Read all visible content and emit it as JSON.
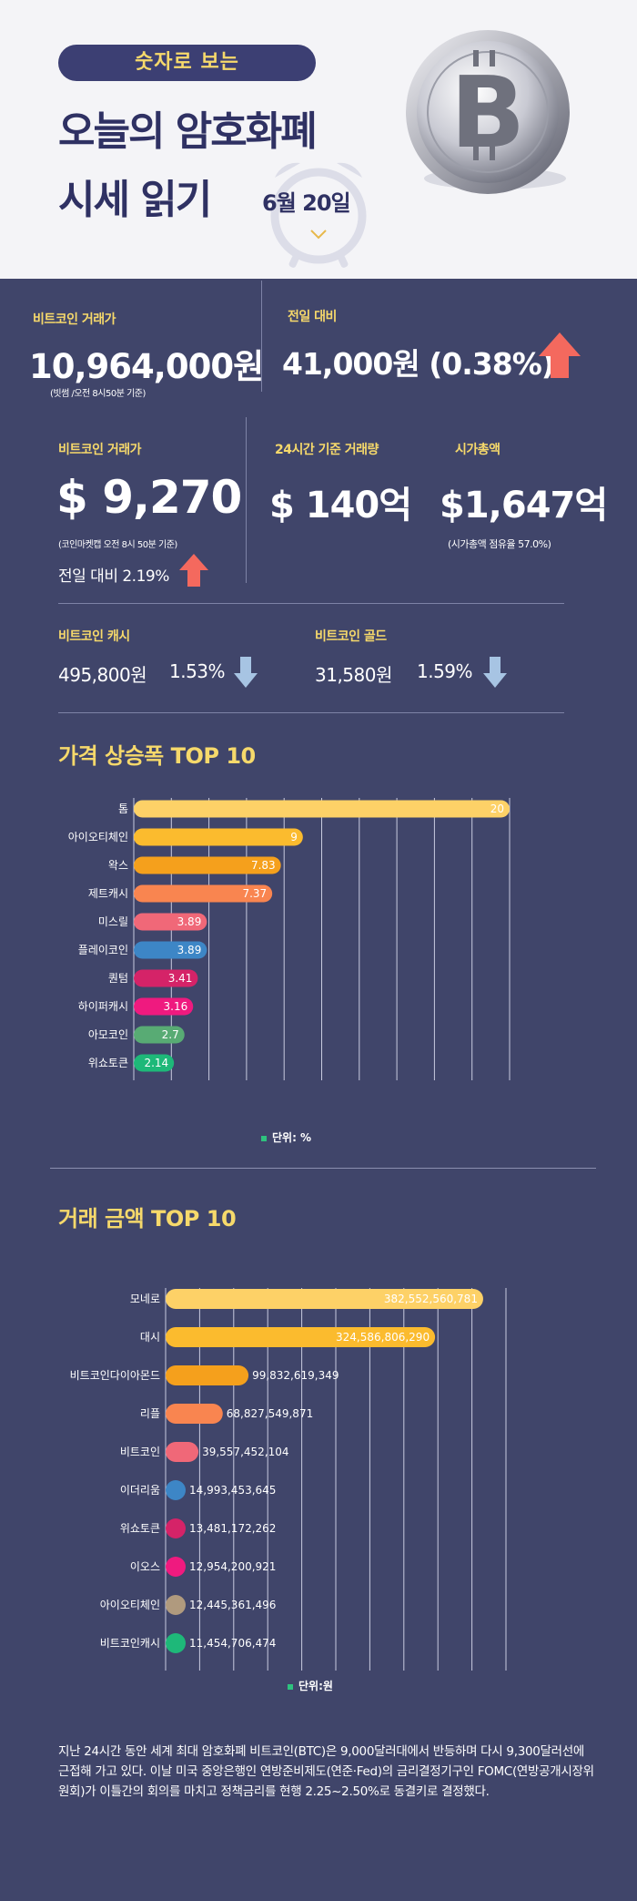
{
  "header": {
    "badge": "숫자로 보는",
    "title_line1": "오늘의 암호화폐",
    "title_line2": "시세 읽기",
    "date": "6월 20일",
    "coin_icon": "bitcoin-coin-icon",
    "clock_icon": "alarm-clock-icon"
  },
  "stats": {
    "btc_krw": {
      "label": "비트코인 거래가",
      "value": "10,964,000원",
      "note": "(빗썸 /오전 8시50분 기준)"
    },
    "day_change": {
      "label": "전일 대비",
      "value": "41,000원 (0.38%)",
      "direction": "up"
    },
    "btc_usd": {
      "label": "비트코인 거래가",
      "value": "$ 9,270",
      "note": "(코인마켓캡 오전 8시 50분 기준)",
      "change": "전일 대비 2.19%",
      "direction": "up"
    },
    "volume": {
      "label": "24시간 기준 거래량",
      "value": "$ 140억"
    },
    "market_cap": {
      "label": "시가총액",
      "value": "$1,647억",
      "note": "(시가총액 점유율 57.0%)"
    },
    "bch": {
      "label": "비트코인 캐시",
      "value": "495,800원",
      "change": "1.53%",
      "direction": "down"
    },
    "btg": {
      "label": "비트코인 골드",
      "value": "31,580원",
      "change": "1.59%",
      "direction": "down"
    }
  },
  "chart_data": [
    {
      "type": "bar",
      "orientation": "horizontal",
      "title": "가격 상승폭 TOP 10",
      "unit_label": "단위: %",
      "categories": [
        "톰",
        "아이오티체인",
        "왁스",
        "제트캐시",
        "미스릴",
        "플레이코인",
        "퀀텀",
        "하이퍼캐시",
        "아모코인",
        "위쇼토큰"
      ],
      "values": [
        20,
        9,
        7.83,
        7.37,
        3.89,
        3.89,
        3.41,
        3.16,
        2.7,
        2.14
      ],
      "value_labels": [
        "20",
        "9",
        "7.83",
        "7.37",
        "3.89",
        "3.89",
        "3.41",
        "3.16",
        "2.7",
        "2.14"
      ],
      "colors": [
        "#fdd167",
        "#fbbb2e",
        "#f5a01c",
        "#f98550",
        "#f06878",
        "#3d86c6",
        "#d52368",
        "#ef1a7f",
        "#58ab74",
        "#1eb879"
      ],
      "xlim": [
        0,
        20
      ],
      "grid": true
    },
    {
      "type": "bar",
      "orientation": "horizontal",
      "title": "거래 금액 TOP 10",
      "unit_label": "단위:원",
      "categories": [
        "모네로",
        "대시",
        "비트코인다이아몬드",
        "리플",
        "비트코인",
        "이더리움",
        "위쇼토큰",
        "이오스",
        "아이오티체인",
        "비트코인캐시"
      ],
      "values": [
        382552560781,
        324586806290,
        99832619349,
        68827549871,
        39557452104,
        14993453645,
        13481172262,
        12954200921,
        12445361496,
        11454706474
      ],
      "value_labels": [
        "382,552,560,781",
        "324,586,806,290",
        "99,832,619,349",
        "68,827,549,871",
        "39,557,452,104",
        "14,993,453,645",
        "13,481,172,262",
        "12,954,200,921",
        "12,445,361,496",
        "11,454,706,474"
      ],
      "colors": [
        "#fdd167",
        "#fbbb2e",
        "#f5a01c",
        "#f98550",
        "#f06878",
        "#3d86c6",
        "#d52368",
        "#ef1a7f",
        "#b09a7e",
        "#1eb879"
      ],
      "xlim": [
        0,
        410000000000
      ],
      "grid": true
    }
  ],
  "footer": {
    "text": "지난 24시간 동안 세계 최대 암호화폐 비트코인(BTC)은 9,000달러대에서 반등하며 다시 9,300달러선에 근접해 가고 있다. 이날 미국 중앙은행인 연방준비제도(연준·Fed)의 금리결정기구인 FOMC(연방공개시장위원회)가 이틀간의 회의를 마치고 정책금리를 현행 2.25~2.50%로 동결키로 결정했다."
  }
}
